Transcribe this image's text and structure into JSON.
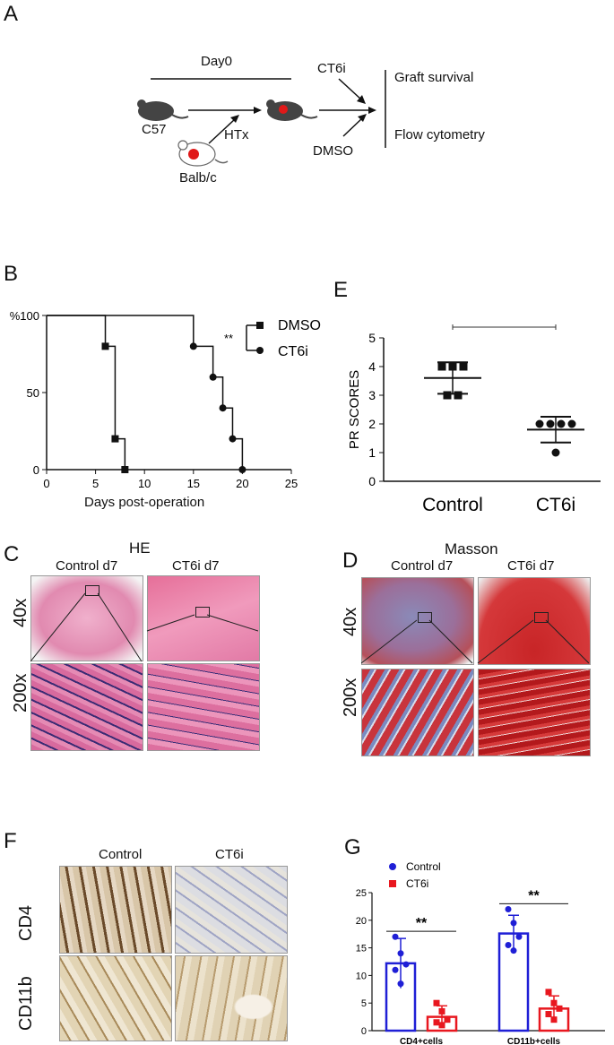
{
  "panels": {
    "A": "A",
    "B": "B",
    "C": "C",
    "D": "D",
    "E": "E",
    "F": "F",
    "G": "G"
  },
  "schema": {
    "day0": "Day0",
    "c57": "C57",
    "balbc": "Balb/c",
    "htx": "HTx",
    "ct6i": "CT6i",
    "dmso": "DMSO",
    "graft_survival": "Graft survival",
    "flow": "Flow cytometry"
  },
  "survival": {
    "percent_label": "%100",
    "xlabel": "Days post-operation",
    "signif": "**",
    "legend": [
      "DMSO",
      "CT6i"
    ]
  },
  "histology": {
    "he_title": "HE",
    "masson_title": "Masson",
    "control_d7": "Control d7",
    "ct6i_d7": "CT6i d7",
    "mag40": "40x",
    "mag200": "200x"
  },
  "ihc": {
    "control": "Control",
    "ct6i": "CT6i",
    "cd4": "CD4",
    "cd11b": "CD11b"
  },
  "colors": {
    "control": "#1f1fd6",
    "ct6i": "#e8171f",
    "he_pink": "#e07aa8",
    "masson_red": "#c8282a"
  },
  "chart_data": [
    {
      "type": "line",
      "title": "",
      "xlabel": "Days post-operation",
      "ylabel": "%",
      "xlim": [
        0,
        25
      ],
      "ylim": [
        0,
        100
      ],
      "xticks": [
        0,
        5,
        10,
        15,
        20,
        25
      ],
      "yticks": [
        0,
        50,
        100
      ],
      "series": [
        {
          "name": "DMSO",
          "marker": "square",
          "x": [
            0,
            6,
            7,
            8
          ],
          "y": [
            100,
            80,
            20,
            0
          ]
        },
        {
          "name": "CT6i",
          "marker": "circle",
          "x": [
            0,
            15,
            17,
            18,
            19,
            20
          ],
          "y": [
            100,
            80,
            60,
            40,
            20,
            0
          ]
        }
      ],
      "annotation": "**"
    },
    {
      "type": "scatter",
      "title": "",
      "ylabel": "PR SCORES",
      "xlabel": "",
      "categories": [
        "Control",
        "CT6i"
      ],
      "ylim": [
        0,
        5
      ],
      "yticks": [
        0,
        1,
        2,
        3,
        4,
        5
      ],
      "series": [
        {
          "name": "Control",
          "marker": "square",
          "values": [
            4,
            4,
            4,
            3,
            3
          ],
          "mean": 3.6,
          "sd_low": 3.05,
          "sd_high": 4.15
        },
        {
          "name": "CT6i",
          "marker": "circle",
          "values": [
            2,
            2,
            2,
            2,
            1
          ],
          "mean": 1.8,
          "sd_low": 1.35,
          "sd_high": 2.25
        }
      ],
      "annotation": "**"
    },
    {
      "type": "bar",
      "title": "",
      "categories": [
        "CD4+cells",
        "CD11b+cells"
      ],
      "ylim": [
        0,
        25
      ],
      "yticks": [
        0,
        5,
        10,
        15,
        20,
        25
      ],
      "legend": "top-left",
      "series": [
        {
          "name": "Control",
          "values": [
            12.2,
            17.6
          ],
          "err": [
            4.5,
            3.3
          ],
          "points": [
            [
              17,
              14,
              12,
              11,
              8.5
            ],
            [
              22,
              19.5,
              17,
              15.5,
              14.5
            ]
          ]
        },
        {
          "name": "CT6i",
          "values": [
            2.5,
            4.0
          ],
          "err": [
            2.0,
            2.3
          ],
          "points": [
            [
              5,
              3.5,
              2,
              1.5,
              1
            ],
            [
              7,
              5,
              4,
              3,
              2
            ]
          ]
        }
      ],
      "annotations": [
        "**",
        "**"
      ]
    }
  ]
}
